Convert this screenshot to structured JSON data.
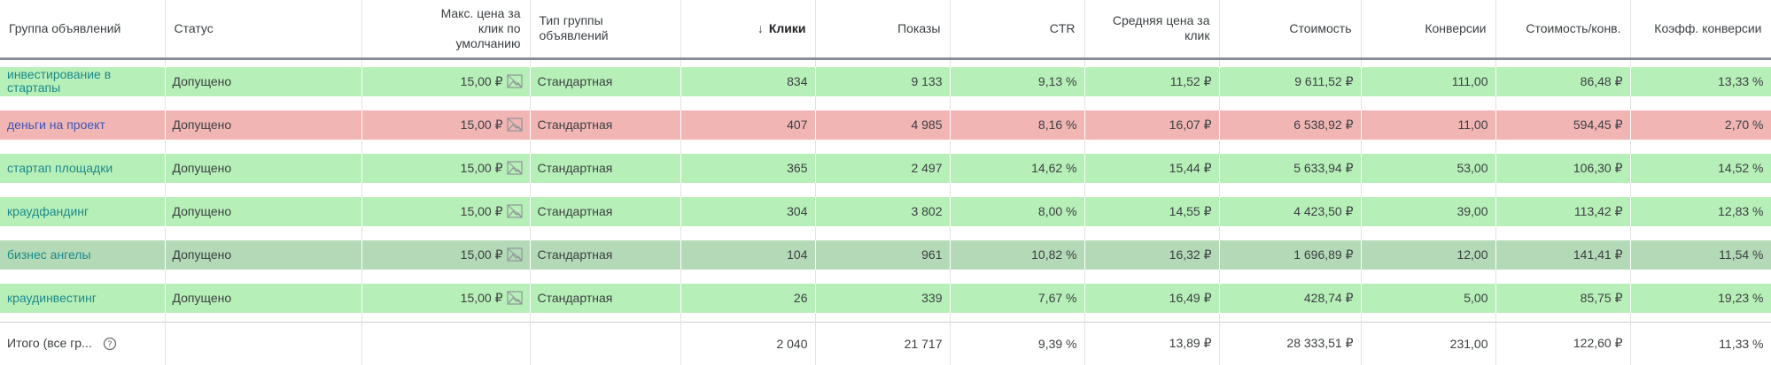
{
  "columns": [
    "Группа объявлений",
    "Статус",
    "Макс. цена за клик по умолчанию",
    "Тип группы объявлений",
    "Клики",
    "Показы",
    "CTR",
    "Средняя цена за клик",
    "Стоимость",
    "Конверсии",
    "Стоимость/конв.",
    "Коэфф. конверсии"
  ],
  "sort_arrow": "↓",
  "colors": {
    "row_green": "#b7efb8",
    "row_red": "#f1b5b4",
    "row_darkgreen": "#b4d9b6",
    "link": "#1a73a8"
  },
  "rows": [
    {
      "name": "инвестирование в стартапы",
      "status": "Допущено",
      "bid": "15,00 ₽",
      "type": "Стандартная",
      "clicks": "834",
      "impressions": "9 133",
      "ctr": "9,13 %",
      "avg_cpc": "11,52 ₽",
      "cost": "9 611,52 ₽",
      "conversions": "111,00",
      "cost_per_conv": "86,48 ₽",
      "conv_rate": "13,33 %"
    },
    {
      "name": "деньги на проект",
      "status": "Допущено",
      "bid": "15,00 ₽",
      "type": "Стандартная",
      "clicks": "407",
      "impressions": "4 985",
      "ctr": "8,16 %",
      "avg_cpc": "16,07 ₽",
      "cost": "6 538,92 ₽",
      "conversions": "11,00",
      "cost_per_conv": "594,45 ₽",
      "conv_rate": "2,70 %"
    },
    {
      "name": "стартап площадки",
      "status": "Допущено",
      "bid": "15,00 ₽",
      "type": "Стандартная",
      "clicks": "365",
      "impressions": "2 497",
      "ctr": "14,62 %",
      "avg_cpc": "15,44 ₽",
      "cost": "5 633,94 ₽",
      "conversions": "53,00",
      "cost_per_conv": "106,30 ₽",
      "conv_rate": "14,52 %"
    },
    {
      "name": "краудфандинг",
      "status": "Допущено",
      "bid": "15,00 ₽",
      "type": "Стандартная",
      "clicks": "304",
      "impressions": "3 802",
      "ctr": "8,00 %",
      "avg_cpc": "14,55 ₽",
      "cost": "4 423,50 ₽",
      "conversions": "39,00",
      "cost_per_conv": "113,42 ₽",
      "conv_rate": "12,83 %"
    },
    {
      "name": "бизнес ангелы",
      "status": "Допущено",
      "bid": "15,00 ₽",
      "type": "Стандартная",
      "clicks": "104",
      "impressions": "961",
      "ctr": "10,82 %",
      "avg_cpc": "16,32 ₽",
      "cost": "1 696,89 ₽",
      "conversions": "12,00",
      "cost_per_conv": "141,41 ₽",
      "conv_rate": "11,54 %"
    },
    {
      "name": "краудинвестинг",
      "status": "Допущено",
      "bid": "15,00 ₽",
      "type": "Стандартная",
      "clicks": "26",
      "impressions": "339",
      "ctr": "7,67 %",
      "avg_cpc": "16,49 ₽",
      "cost": "428,74 ₽",
      "conversions": "5,00",
      "cost_per_conv": "85,75 ₽",
      "conv_rate": "19,23 %"
    }
  ],
  "row_colors": [
    "green",
    "red",
    "green",
    "green",
    "darkgreen",
    "green"
  ],
  "total": {
    "label": "Итого (все гр...",
    "help_icon": "help-circle-icon",
    "clicks": "2 040",
    "impressions": "21 717",
    "ctr": "9,39 %",
    "avg_cpc": "13,89 ₽",
    "cost": "28 333,51 ₽",
    "conversions": "231,00",
    "cost_per_conv": "122,60 ₽",
    "conv_rate": "11,33 %"
  }
}
